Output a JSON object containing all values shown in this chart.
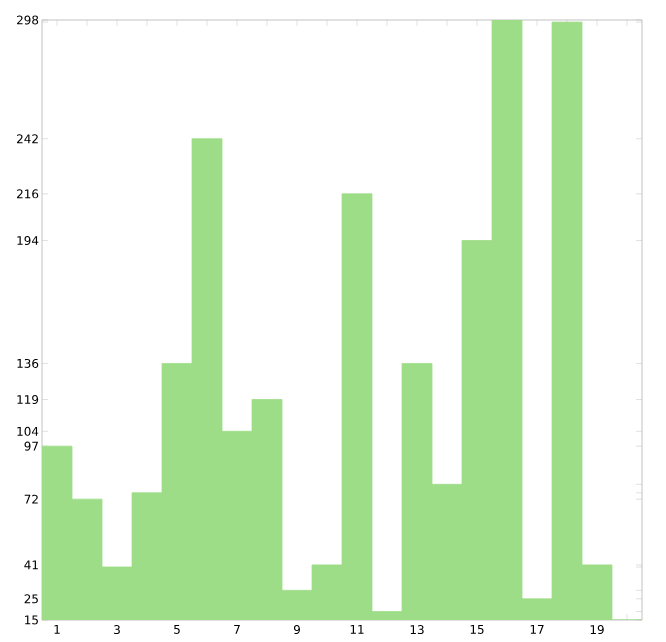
{
  "chart_data": {
    "type": "bar",
    "categories": [
      "1",
      null,
      "3",
      null,
      "5",
      null,
      "7",
      null,
      "9",
      null,
      "11",
      null,
      "13",
      null,
      "15",
      null,
      "17",
      null,
      "19",
      null
    ],
    "values": [
      97,
      72,
      40,
      75,
      136,
      242,
      104,
      119,
      29,
      41,
      216,
      19,
      136,
      79,
      194,
      298,
      25,
      297,
      41,
      15
    ],
    "color": "#9edd88",
    "ylim": [
      15,
      298
    ],
    "yticks": [
      15,
      {
        "value": 19,
        "label": null
      },
      25,
      {
        "value": 29,
        "label": null
      },
      {
        "value": 40,
        "label": null
      },
      41,
      72,
      {
        "value": 75,
        "label": null
      },
      {
        "value": 79,
        "label": null
      },
      97,
      104,
      119,
      136,
      194,
      216,
      242,
      {
        "value": 297,
        "label": null
      },
      298
    ],
    "grid": false
  }
}
